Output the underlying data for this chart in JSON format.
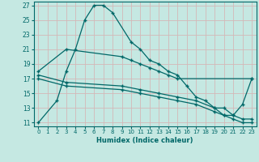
{
  "xlabel": "Humidex (Indice chaleur)",
  "xlim": [
    -0.5,
    23.5
  ],
  "ylim": [
    10.5,
    27.5
  ],
  "yticks": [
    11,
    13,
    15,
    17,
    19,
    21,
    23,
    25,
    27
  ],
  "xticks": [
    0,
    1,
    2,
    3,
    4,
    5,
    6,
    7,
    8,
    9,
    10,
    11,
    12,
    13,
    14,
    15,
    16,
    17,
    18,
    19,
    20,
    21,
    22,
    23
  ],
  "bg_color": "#c5e8e2",
  "grid_color": "#d4b8b8",
  "line_color": "#006868",
  "line1_x": [
    0,
    2,
    3,
    4,
    5,
    6,
    7,
    8,
    10,
    11,
    12,
    13,
    14,
    15,
    16,
    17,
    18,
    19,
    20,
    21,
    22,
    23
  ],
  "line1_y": [
    11,
    14,
    18,
    21,
    25,
    27,
    27,
    26,
    22,
    21,
    19.5,
    19,
    18,
    17.5,
    16,
    14.5,
    14,
    13,
    12,
    12,
    13.5,
    17
  ],
  "line2_x": [
    0,
    3,
    9,
    10,
    11,
    12,
    13,
    14,
    15,
    23
  ],
  "line2_y": [
    18,
    21,
    20,
    19.5,
    19,
    18.5,
    18,
    17.5,
    17,
    17
  ],
  "line3_x": [
    0,
    3,
    9,
    11,
    13,
    15,
    17,
    19,
    20,
    21,
    22,
    23
  ],
  "line3_y": [
    17.5,
    16.5,
    16,
    15.5,
    15,
    14.5,
    14,
    13,
    13,
    12,
    11.5,
    11.5
  ],
  "line4_x": [
    0,
    3,
    9,
    11,
    13,
    15,
    17,
    19,
    20,
    21,
    22,
    23
  ],
  "line4_y": [
    17,
    16,
    15.5,
    15,
    14.5,
    14,
    13.5,
    12.5,
    12,
    11.5,
    11,
    11
  ]
}
